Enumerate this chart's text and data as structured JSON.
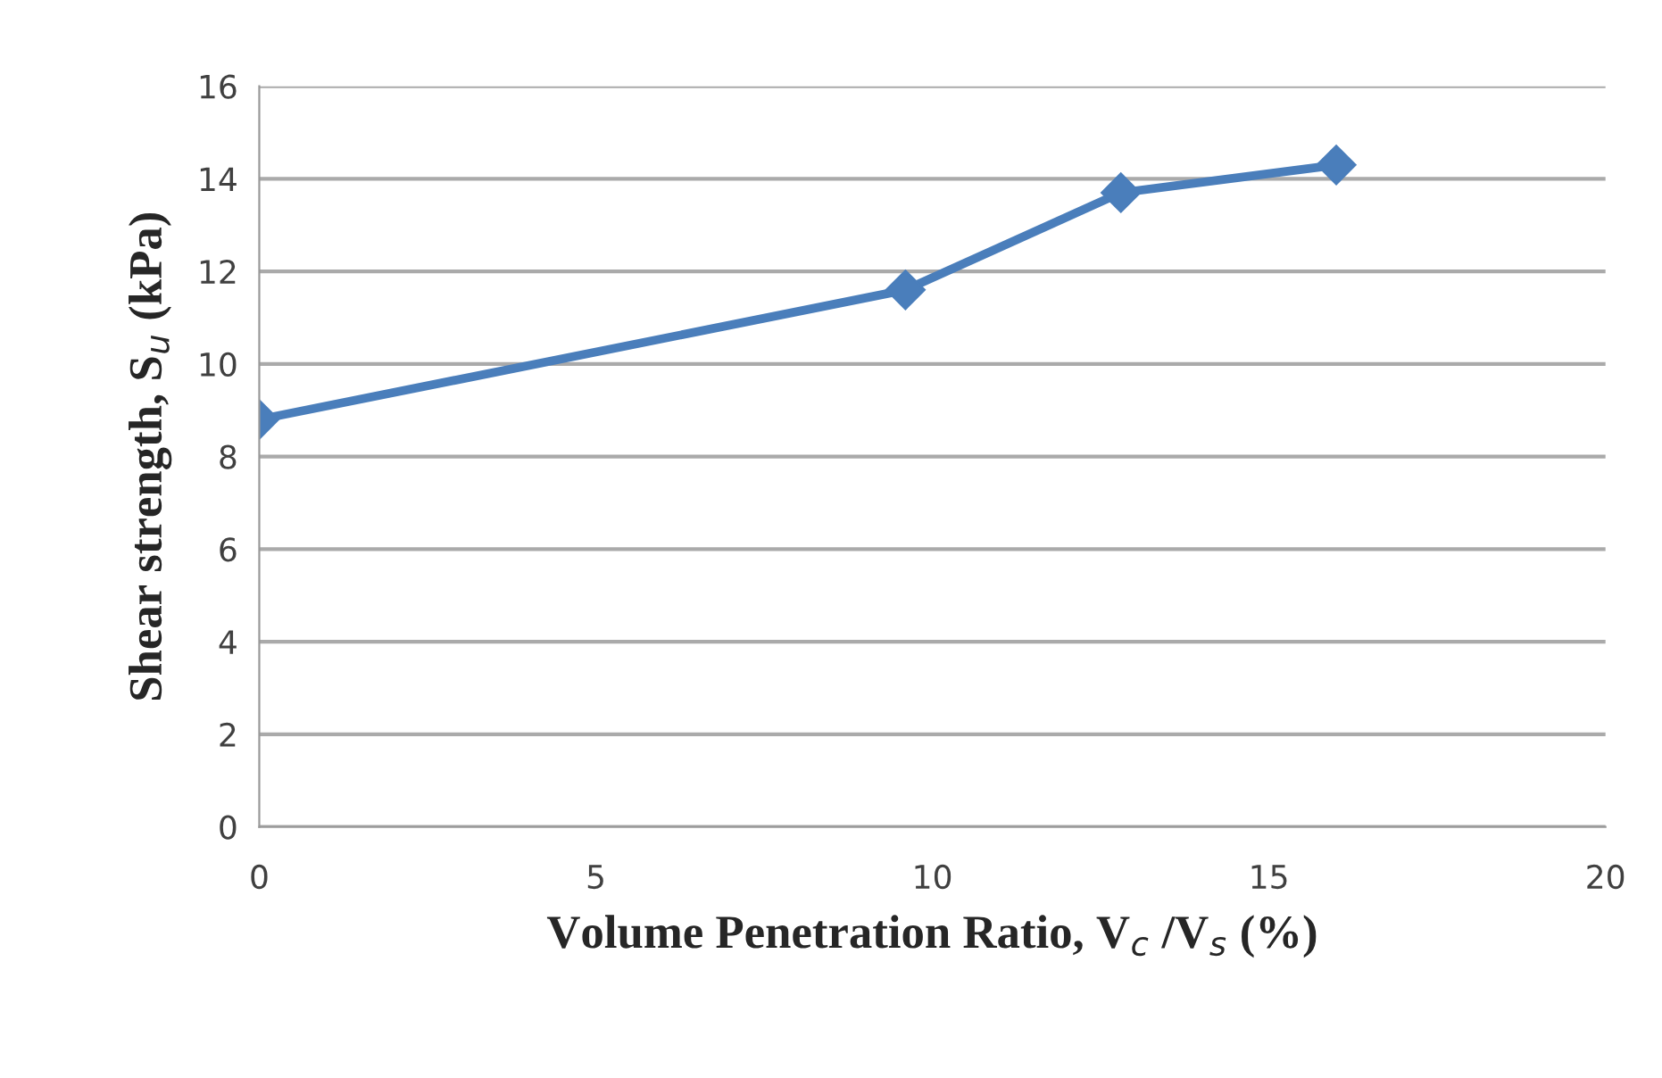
{
  "chart_data": {
    "type": "line",
    "xlabel": "Volume Penetration Ratio, V$_{c}$ /V$_{s}$ (%)",
    "ylabel": "Shear strength, S$_{u}$ (kPa)",
    "x": [
      0,
      9.6,
      12.8,
      16.0
    ],
    "series": [
      {
        "color": "#4a7ebb",
        "values": [
          8.8,
          11.6,
          13.7,
          14.3
        ]
      }
    ],
    "xlim": [
      0,
      20
    ],
    "xticks": [
      0,
      5,
      10,
      15,
      20
    ],
    "ylim": [
      0,
      16
    ],
    "yticks": [
      0,
      2,
      4,
      6,
      8,
      10,
      12,
      14,
      16
    ],
    "grid": "y",
    "marker": "diamond",
    "line_style": "solid"
  }
}
